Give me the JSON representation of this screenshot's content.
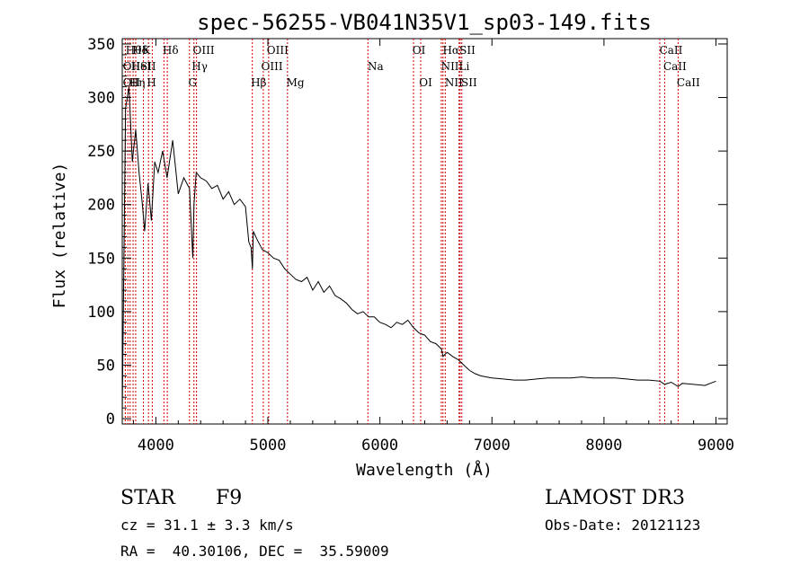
{
  "chart_data": {
    "type": "line",
    "title": "spec-56255-VB041N35V1_sp03-149.fits",
    "xlabel": "Wavelength (Å)",
    "ylabel": "Flux (relative)",
    "xlim": [
      3700,
      9100
    ],
    "ylim": [
      -5,
      355
    ],
    "xticks": [
      4000,
      5000,
      6000,
      7000,
      8000,
      9000
    ],
    "xtick_labels": [
      "4000",
      "5000",
      "6000",
      "7000",
      "8000",
      "9000"
    ],
    "yticks": [
      0,
      50,
      100,
      150,
      200,
      250,
      300,
      350
    ],
    "ytick_labels": [
      "0",
      "50",
      "100",
      "150",
      "200",
      "250",
      "300",
      "350"
    ],
    "line_color": "#000000",
    "marker_color": "#cc0000",
    "series": [
      {
        "name": "spectrum",
        "x": [
          3700,
          3730,
          3760,
          3790,
          3820,
          3850,
          3880,
          3900,
          3930,
          3960,
          3990,
          4020,
          4060,
          4100,
          4150,
          4200,
          4250,
          4300,
          4330,
          4340,
          4360,
          4400,
          4450,
          4500,
          4550,
          4600,
          4650,
          4700,
          4750,
          4800,
          4830,
          4850,
          4862,
          4870,
          4900,
          4950,
          5000,
          5050,
          5100,
          5150,
          5200,
          5250,
          5300,
          5350,
          5400,
          5450,
          5500,
          5550,
          5600,
          5650,
          5700,
          5750,
          5800,
          5850,
          5900,
          5950,
          6000,
          6050,
          6100,
          6150,
          6200,
          6250,
          6300,
          6350,
          6400,
          6450,
          6500,
          6550,
          6563,
          6600,
          6650,
          6700,
          6750,
          6800,
          6850,
          6900,
          6950,
          7000,
          7100,
          7200,
          7300,
          7400,
          7500,
          7600,
          7700,
          7800,
          7900,
          8000,
          8100,
          8200,
          8300,
          8400,
          8500,
          8542,
          8600,
          8662,
          8700,
          8800,
          8900,
          9000
        ],
        "y": [
          5,
          290,
          310,
          240,
          270,
          230,
          200,
          175,
          220,
          185,
          240,
          230,
          250,
          225,
          260,
          210,
          225,
          215,
          150,
          200,
          230,
          225,
          222,
          215,
          218,
          205,
          212,
          200,
          205,
          198,
          165,
          160,
          140,
          175,
          168,
          158,
          155,
          150,
          148,
          140,
          135,
          130,
          128,
          132,
          120,
          128,
          118,
          124,
          115,
          112,
          108,
          102,
          98,
          100,
          95,
          95,
          90,
          88,
          85,
          90,
          88,
          92,
          85,
          80,
          78,
          72,
          70,
          65,
          58,
          62,
          58,
          55,
          50,
          45,
          42,
          40,
          39,
          38,
          37,
          36,
          36,
          37,
          38,
          38,
          38,
          39,
          38,
          38,
          38,
          37,
          36,
          36,
          35,
          32,
          34,
          30,
          33,
          32,
          31,
          35
        ]
      }
    ],
    "lines": [
      {
        "x": 3727,
        "label": "OII",
        "row": 2,
        "lx": 3705
      },
      {
        "x": 3728,
        "label": "OII",
        "row": 1,
        "lx": 3705
      },
      {
        "x": 3750,
        "label": "Hθ",
        "row": 0,
        "lx": 3730
      },
      {
        "x": 3770,
        "label": "Hη",
        "row": 2,
        "lx": 3763
      },
      {
        "x": 3797,
        "label": "Hδ",
        "row": 0,
        "lx": 3790
      },
      {
        "x": 3820,
        "label": "HeI",
        "row": 1,
        "lx": 3778
      },
      {
        "x": 3889,
        "label": "K",
        "row": 0,
        "lx": 3880
      },
      {
        "x": 3934,
        "label": "H",
        "row": 2,
        "lx": 3920
      },
      {
        "x": 3968,
        "label": "SII",
        "row": 1,
        "lx": 3860
      },
      {
        "x": 4072,
        "label": "Hδ",
        "row": 0,
        "lx": 4060
      },
      {
        "x": 4102,
        "label": "",
        "row": 1,
        "lx": 4102
      },
      {
        "x": 4300,
        "label": "G",
        "row": 2,
        "lx": 4290
      },
      {
        "x": 4340,
        "label": "Hγ",
        "row": 1,
        "lx": 4320
      },
      {
        "x": 4363,
        "label": "OIII",
        "row": 0,
        "lx": 4330
      },
      {
        "x": 4861,
        "label": "Hβ",
        "row": 2,
        "lx": 4848
      },
      {
        "x": 4959,
        "label": "OIII",
        "row": 1,
        "lx": 4940
      },
      {
        "x": 5007,
        "label": "OIII",
        "row": 0,
        "lx": 4990
      },
      {
        "x": 5175,
        "label": "Mg",
        "row": 2,
        "lx": 5165
      },
      {
        "x": 5893,
        "label": "Na",
        "row": 1,
        "lx": 5890
      },
      {
        "x": 6300,
        "label": "OI",
        "row": 0,
        "lx": 6290
      },
      {
        "x": 6364,
        "label": "OI",
        "row": 2,
        "lx": 6350
      },
      {
        "x": 6548,
        "label": "NII",
        "row": 1,
        "lx": 6545
      },
      {
        "x": 6563,
        "label": "Hα",
        "row": 0,
        "lx": 6560
      },
      {
        "x": 6583,
        "label": "NII",
        "row": 2,
        "lx": 6580
      },
      {
        "x": 6707,
        "label": "Li",
        "row": 1,
        "lx": 6705
      },
      {
        "x": 6716,
        "label": "SII",
        "row": 0,
        "lx": 6710
      },
      {
        "x": 6731,
        "label": "SII",
        "row": 2,
        "lx": 6725
      },
      {
        "x": 8498,
        "label": "CaII",
        "row": 0,
        "lx": 8495
      },
      {
        "x": 8542,
        "label": "CaII",
        "row": 1,
        "lx": 8530
      },
      {
        "x": 8662,
        "label": "CaII",
        "row": 2,
        "lx": 8650
      }
    ]
  },
  "info": {
    "class": "STAR",
    "subclass": "F9",
    "survey": "LAMOST DR3",
    "redshift": "cz = 31.1 ± 3.3 km/s",
    "obs_date": "Obs-Date: 20121123",
    "coords": "RA =  40.30106, DEC =  35.59009"
  }
}
